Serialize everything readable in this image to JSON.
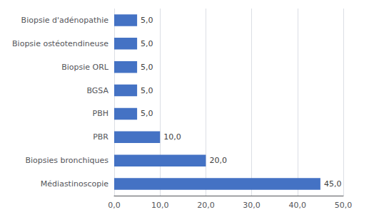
{
  "chart_data": {
    "type": "bar",
    "orientation": "horizontal",
    "categories": [
      "Médiastinoscopie",
      "Biopsies bronchiques",
      "PBR",
      "PBH",
      "BGSA",
      "Biopsie ORL",
      "Biopsie ostéotendineuse",
      "Biopsie d'adénopathie"
    ],
    "values": [
      45.0,
      20.0,
      10.0,
      5.0,
      5.0,
      5.0,
      5.0,
      5.0
    ],
    "value_labels": [
      "45,0",
      "20,0",
      "10,0",
      "5,0",
      "5,0",
      "5,0",
      "5,0",
      "5,0"
    ],
    "data_labels": true,
    "color": "#4472C4",
    "xlim": [
      0,
      50
    ],
    "xticks": [
      {
        "value": 0.0,
        "label": "0,0"
      },
      {
        "value": 10.0,
        "label": "10,0"
      },
      {
        "value": 20.0,
        "label": "20,0"
      },
      {
        "value": 30.0,
        "label": "30,0"
      },
      {
        "value": 40.0,
        "label": "40,0"
      },
      {
        "value": 50.0,
        "label": "50,0"
      }
    ],
    "grid": true
  }
}
